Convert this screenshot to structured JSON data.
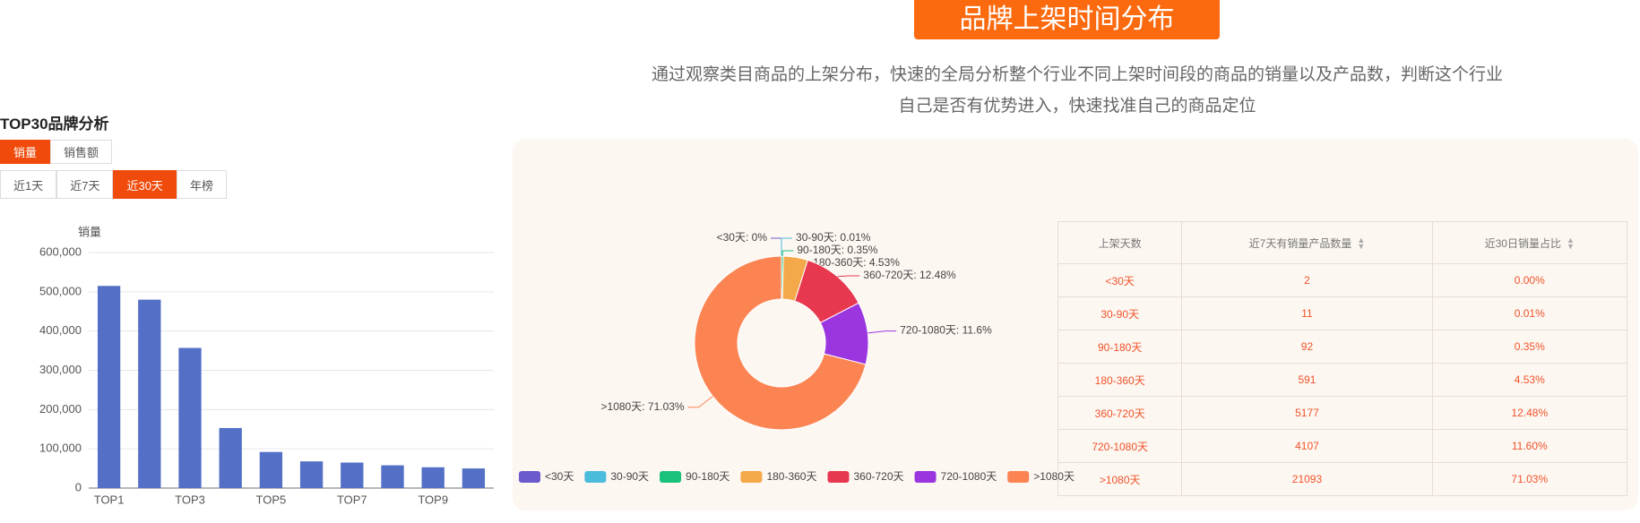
{
  "header": {
    "title": "品牌上架时间分布",
    "subtitle": [
      "通过观察类目商品的上架分布，快速的全局分析整个行业不同上架时间段的商品的销量以及产品数，判断这个行业",
      "自己是否有优势进入，快速找准自己的商品定位"
    ]
  },
  "left_panel": {
    "title": "TOP30品牌分析",
    "metric_tabs": [
      "销量",
      "销售额"
    ],
    "period_tabs": [
      "近1天",
      "近7天",
      "近30天",
      "年榜"
    ]
  },
  "chart_data": [
    {
      "type": "bar",
      "y_label": "销量",
      "categories": [
        "TOP1",
        null,
        "TOP3",
        null,
        "TOP5",
        null,
        "TOP7",
        null,
        "TOP9",
        null
      ],
      "values": [
        515000,
        480000,
        357000,
        153000,
        92000,
        68000,
        65000,
        58000,
        53000,
        50000
      ],
      "color": "#5470c6",
      "ylim": [
        0,
        600000
      ],
      "yticks": [
        0,
        {
          "value": 100000,
          "label": "100,000"
        },
        {
          "value": 200000,
          "label": "200,000"
        },
        {
          "value": 300000,
          "label": "300,000"
        },
        {
          "value": 400000,
          "label": "400,000"
        },
        {
          "value": 500000,
          "label": "500,000"
        },
        {
          "value": 600000,
          "label": "600,000"
        }
      ],
      "grid": true
    },
    {
      "type": "pie",
      "categories": [
        "<30天",
        "30-90天",
        "90-180天",
        "180-360天",
        "360-720天",
        "720-1080天",
        ">1080天"
      ],
      "values": [
        0,
        0.01,
        0.35,
        4.53,
        12.48,
        11.6,
        71.03
      ],
      "value_labels": [
        "<30天: 0%",
        "30-90天: 0.01%",
        "90-180天: 0.35%",
        "180-360天: 4.53%",
        "360-720天: 12.48%",
        "720-1080天: 11.6%",
        ">1080天: 71.03%"
      ],
      "colors": [
        "#6a5acd",
        "#4cbcdc",
        "#19c27a",
        "#f5a84a",
        "#e8384f",
        "#9b35e0",
        "#fc8452"
      ],
      "legend": "bottom"
    }
  ],
  "table": {
    "header": [
      "上架天数",
      "近7天有销量产品数量",
      "近30日销量占比"
    ],
    "rows": [
      [
        "<30天",
        "2",
        "0.00%"
      ],
      [
        "30-90天",
        "11",
        "0.01%"
      ],
      [
        "90-180天",
        "92",
        "0.35%"
      ],
      [
        "180-360天",
        "591",
        "4.53%"
      ],
      [
        "360-720天",
        "5177",
        "12.48%"
      ],
      [
        "720-1080天",
        "4107",
        "11.60%"
      ],
      [
        ">1080天",
        "21093",
        "71.03%"
      ]
    ]
  }
}
